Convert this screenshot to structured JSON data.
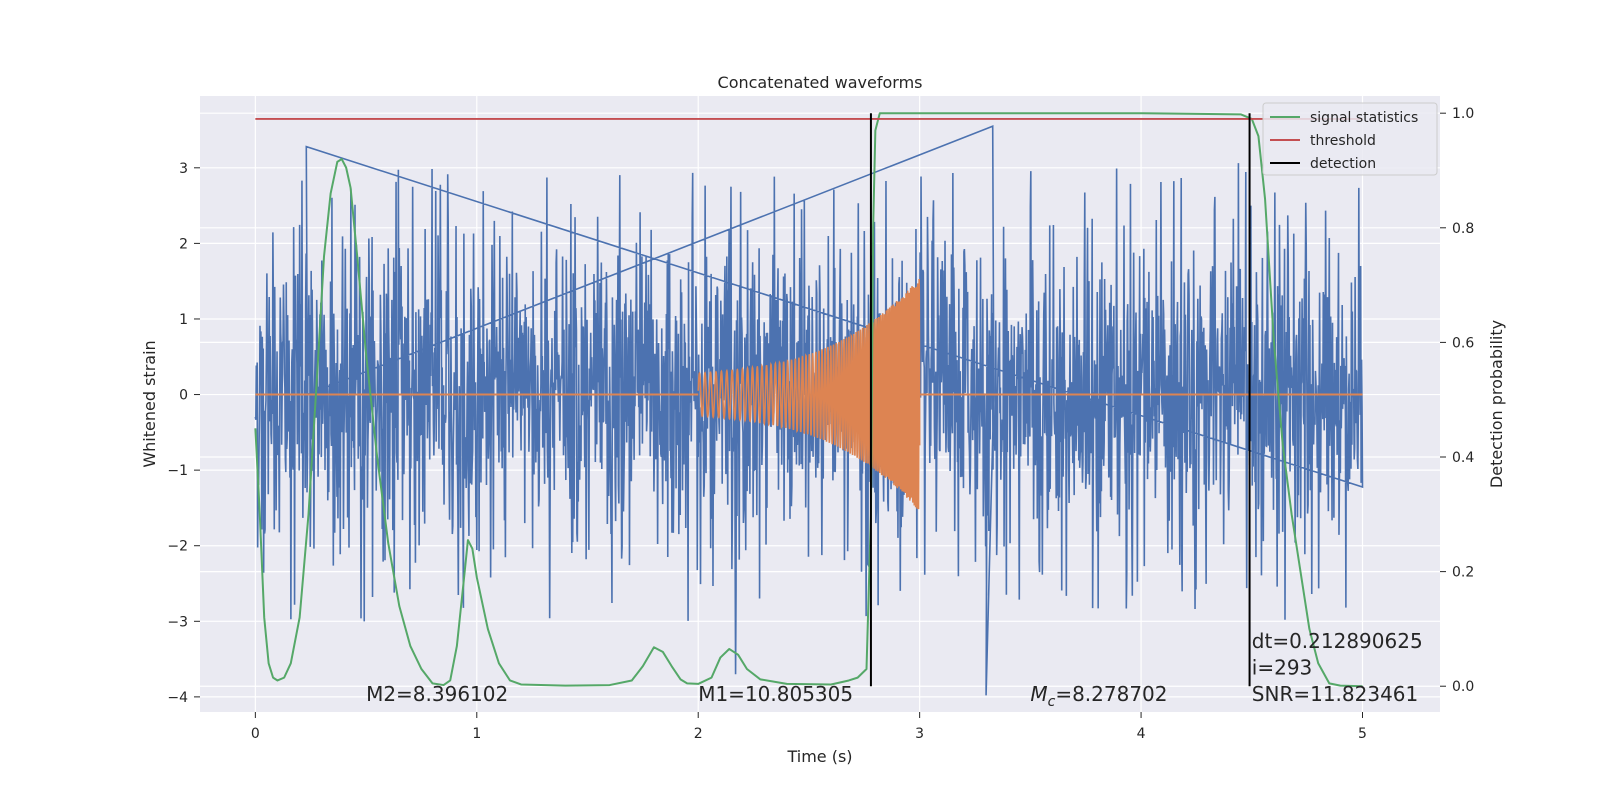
{
  "chart_data": {
    "type": "line",
    "title": "Concatenated waveforms",
    "xlabel": "Time (s)",
    "ylabel": "Whitened strain",
    "ylabel_right": "Detection probability",
    "xlim": [
      -0.25,
      5.35
    ],
    "ylim": [
      -4.2,
      3.95
    ],
    "ylim_right": [
      -0.045,
      1.03
    ],
    "xticks": [
      0,
      1,
      2,
      3,
      4,
      5
    ],
    "yticks": [
      -4,
      -3,
      -2,
      -1,
      0,
      1,
      2,
      3
    ],
    "yticks_right": [
      0.0,
      0.2,
      0.4,
      0.6,
      0.8,
      1.0
    ],
    "xtick_labels": [
      "0",
      "1",
      "2",
      "3",
      "4",
      "5"
    ],
    "ytick_labels": [
      "−4",
      "−3",
      "−2",
      "−1",
      "0",
      "1",
      "2",
      "3"
    ],
    "ytick_right_labels": [
      "0.0",
      "0.2",
      "0.4",
      "0.6",
      "0.8",
      "1.0"
    ],
    "grid": true,
    "legend_position": "top-right",
    "colors": {
      "strain": "#4c72b0",
      "template": "#dd8452",
      "signal_statistics": "#55a868",
      "threshold": "#c44e52",
      "detection": "#000000",
      "axes_background": "#eaeaf2",
      "grid": "#ffffff"
    },
    "series": [
      {
        "name": "",
        "axis": "left",
        "color_key": "strain",
        "x_range": [
          0,
          5
        ],
        "amplitude_envelope": 2.5,
        "peak_max": 3.55,
        "peak_min": -4.0
      },
      {
        "name": "",
        "axis": "left",
        "color_key": "template",
        "x_range": [
          2.0,
          3.0
        ],
        "start_amplitude": 0.28,
        "end_amplitude": 1.3
      },
      {
        "name": "signal statistics",
        "axis": "right",
        "color_key": "signal_statistics",
        "points": [
          [
            0.0,
            0.45
          ],
          [
            0.02,
            0.3
          ],
          [
            0.04,
            0.12
          ],
          [
            0.06,
            0.04
          ],
          [
            0.08,
            0.015
          ],
          [
            0.1,
            0.01
          ],
          [
            0.13,
            0.015
          ],
          [
            0.16,
            0.04
          ],
          [
            0.2,
            0.12
          ],
          [
            0.24,
            0.3
          ],
          [
            0.28,
            0.55
          ],
          [
            0.31,
            0.75
          ],
          [
            0.34,
            0.86
          ],
          [
            0.37,
            0.915
          ],
          [
            0.39,
            0.92
          ],
          [
            0.41,
            0.905
          ],
          [
            0.43,
            0.87
          ],
          [
            0.46,
            0.75
          ],
          [
            0.5,
            0.58
          ],
          [
            0.55,
            0.4
          ],
          [
            0.6,
            0.25
          ],
          [
            0.65,
            0.14
          ],
          [
            0.7,
            0.07
          ],
          [
            0.75,
            0.03
          ],
          [
            0.8,
            0.005
          ],
          [
            0.85,
            0.002
          ],
          [
            0.88,
            0.01
          ],
          [
            0.91,
            0.07
          ],
          [
            0.94,
            0.18
          ],
          [
            0.96,
            0.255
          ],
          [
            0.98,
            0.24
          ],
          [
            1.0,
            0.19
          ],
          [
            1.05,
            0.1
          ],
          [
            1.1,
            0.04
          ],
          [
            1.15,
            0.01
          ],
          [
            1.2,
            0.003
          ],
          [
            1.4,
            0.001
          ],
          [
            1.6,
            0.002
          ],
          [
            1.7,
            0.01
          ],
          [
            1.75,
            0.035
          ],
          [
            1.8,
            0.068
          ],
          [
            1.84,
            0.06
          ],
          [
            1.88,
            0.035
          ],
          [
            1.92,
            0.012
          ],
          [
            1.95,
            0.005
          ],
          [
            2.0,
            0.004
          ],
          [
            2.06,
            0.015
          ],
          [
            2.1,
            0.05
          ],
          [
            2.14,
            0.065
          ],
          [
            2.18,
            0.055
          ],
          [
            2.22,
            0.03
          ],
          [
            2.28,
            0.012
          ],
          [
            2.4,
            0.004
          ],
          [
            2.6,
            0.003
          ],
          [
            2.68,
            0.01
          ],
          [
            2.72,
            0.015
          ],
          [
            2.76,
            0.03
          ],
          [
            2.78,
            0.3
          ],
          [
            2.79,
            0.8
          ],
          [
            2.8,
            0.97
          ],
          [
            2.82,
            1.0
          ],
          [
            3.0,
            1.0
          ],
          [
            3.5,
            1.0
          ],
          [
            4.0,
            1.0
          ],
          [
            4.45,
            0.998
          ],
          [
            4.5,
            0.99
          ],
          [
            4.53,
            0.96
          ],
          [
            4.56,
            0.85
          ],
          [
            4.6,
            0.6
          ],
          [
            4.64,
            0.42
          ],
          [
            4.68,
            0.3
          ],
          [
            4.72,
            0.2
          ],
          [
            4.76,
            0.1
          ],
          [
            4.8,
            0.04
          ],
          [
            4.85,
            0.005
          ],
          [
            4.9,
            0.001
          ],
          [
            5.0,
            0.0
          ]
        ]
      },
      {
        "name": "threshold",
        "axis": "right",
        "color_key": "threshold",
        "value": 0.99,
        "x_range": [
          0,
          5
        ]
      },
      {
        "name": "detection",
        "axis": "right",
        "color_key": "detection",
        "x": [
          2.78,
          4.49
        ],
        "y_range": [
          0.0,
          1.0
        ]
      }
    ],
    "annotations": [
      {
        "text": "M2=8.396102",
        "x": 0.5,
        "y": -4.0
      },
      {
        "text": "M1=10.805305",
        "x": 2.0,
        "y": -4.0
      },
      {
        "text_italic": "M",
        "text_sub": "c",
        "text_rest": "=8.278702",
        "x": 3.5,
        "y": -4.0
      },
      {
        "text": "SNR=11.823461",
        "x": 4.5,
        "y": -4.0
      },
      {
        "text": " i=293",
        "x": 4.5,
        "y": -3.65
      },
      {
        "text": "dt=0.212890625",
        "x": 4.5,
        "y": -3.3
      }
    ]
  }
}
